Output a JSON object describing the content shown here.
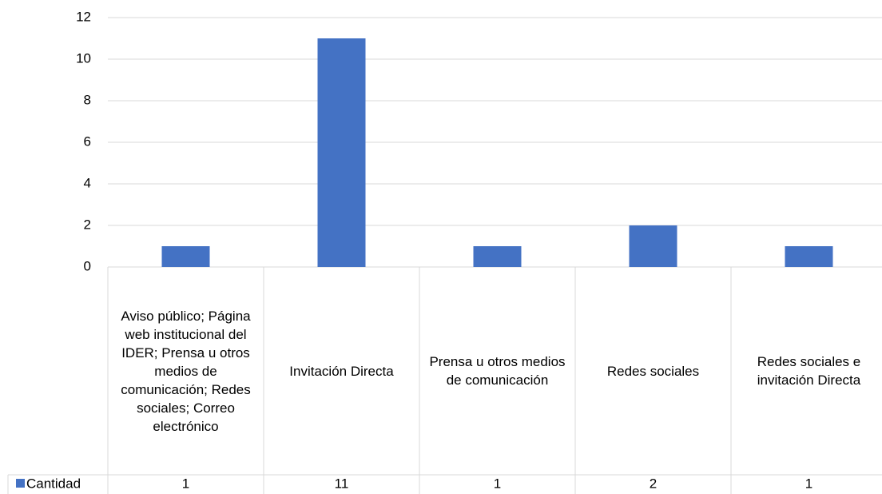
{
  "chart_data": {
    "type": "bar",
    "categories": [
      "Aviso público; Página web institucional del IDER; Prensa u otros medios de comunicación; Redes sociales; Correo electrónico",
      "Invitación Directa",
      "Prensa u otros medios de comunicación",
      "Redes sociales",
      "Redes sociales e invitación Directa"
    ],
    "series": [
      {
        "name": "Cantidad",
        "color": "#4472c4",
        "values": [
          1,
          11,
          1,
          2,
          1
        ]
      }
    ],
    "ylim": [
      0,
      12
    ],
    "yticks": [
      0,
      2,
      4,
      6,
      8,
      10,
      12
    ],
    "grid": true
  }
}
